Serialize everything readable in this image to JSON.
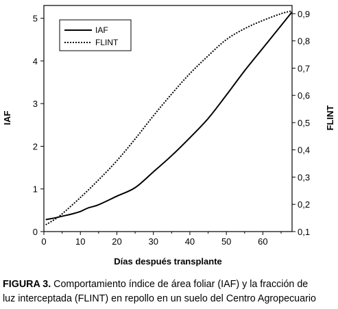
{
  "chart_data": {
    "type": "line",
    "title": "",
    "xlabel": "Días después transplante",
    "ylabel_left": "IAF",
    "ylabel_right": "FLINT",
    "xlim": [
      0,
      68
    ],
    "xticks": [
      0,
      10,
      20,
      30,
      40,
      50,
      60
    ],
    "ylim_left": [
      0,
      5.3
    ],
    "yticks_left": [
      0,
      1,
      2,
      3,
      4,
      5
    ],
    "ylim_right": [
      0.1,
      0.93
    ],
    "yticks_right": [
      "0,1",
      "0,2",
      "0,3",
      "0,4",
      "0,5",
      "0,6",
      "0,7",
      "0,8",
      "0,9"
    ],
    "yticks_right_values": [
      0.1,
      0.2,
      0.3,
      0.4,
      0.5,
      0.6,
      0.7,
      0.8,
      0.9
    ],
    "grid": false,
    "legend_position": "top-left",
    "series": [
      {
        "name": "IAF",
        "axis": "left",
        "style": "solid",
        "color": "#000000",
        "x": [
          0.5,
          3,
          5,
          8,
          10,
          12,
          15,
          20,
          25,
          30,
          35,
          40,
          45,
          50,
          55,
          60,
          65,
          68
        ],
        "y": [
          0.28,
          0.32,
          0.36,
          0.42,
          0.47,
          0.55,
          0.63,
          0.83,
          1.03,
          1.4,
          1.78,
          2.2,
          2.65,
          3.2,
          3.77,
          4.3,
          4.83,
          5.15
        ]
      },
      {
        "name": "FLINT",
        "axis": "right",
        "style": "dotted",
        "color": "#000000",
        "x": [
          0.5,
          3,
          5,
          10,
          15,
          20,
          25,
          30,
          35,
          40,
          45,
          50,
          55,
          60,
          65,
          68
        ],
        "y": [
          0.125,
          0.145,
          0.165,
          0.225,
          0.29,
          0.36,
          0.44,
          0.525,
          0.605,
          0.68,
          0.745,
          0.805,
          0.845,
          0.875,
          0.9,
          0.91
        ]
      }
    ]
  },
  "caption": {
    "label": "FIGURA 3.",
    "line1": "Comportamiento índice de área foliar (IAF) y la fracción de",
    "line2": "luz interceptada (FLINT) en repollo en un suelo del Centro Agropecuario"
  }
}
